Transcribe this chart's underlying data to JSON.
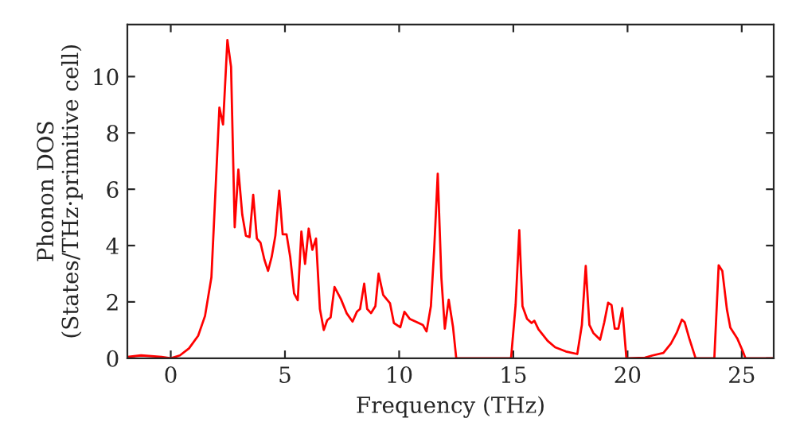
{
  "chart_data": {
    "type": "line",
    "xlabel": "Frequency (THz)",
    "ylabel": "Phonon DOS\n(States/THz·primitive cell)",
    "xlim": [
      -1.9,
      26.4
    ],
    "ylim": [
      0,
      11.85
    ],
    "xticks": [
      0,
      5,
      10,
      15,
      20,
      25
    ],
    "yticks": [
      0,
      2,
      4,
      6,
      8,
      10
    ],
    "grid": false,
    "legend": false,
    "marker": "none",
    "line_style": "solid",
    "series": [
      {
        "color": "#ff0000",
        "x": [
          -1.9,
          -1.3,
          -0.4,
          0,
          0.4,
          0.8,
          1.2,
          1.5,
          1.78,
          2.13,
          2.29,
          2.48,
          2.64,
          2.8,
          2.96,
          3.13,
          3.29,
          3.45,
          3.61,
          3.77,
          3.93,
          4.1,
          4.26,
          4.42,
          4.58,
          4.75,
          4.9,
          5.07,
          5.23,
          5.4,
          5.56,
          5.72,
          5.88,
          6.04,
          6.2,
          6.36,
          6.53,
          6.7,
          6.85,
          7.0,
          7.17,
          7.45,
          7.7,
          7.96,
          8.15,
          8.29,
          8.47,
          8.6,
          8.77,
          8.96,
          9.1,
          9.3,
          9.6,
          9.77,
          10.05,
          10.23,
          10.46,
          10.8,
          11.04,
          11.2,
          11.39,
          11.53,
          11.69,
          11.85,
          12.0,
          12.17,
          12.36,
          12.5,
          14.9,
          15.1,
          15.26,
          15.4,
          15.6,
          15.8,
          15.92,
          16.1,
          16.5,
          16.83,
          17.3,
          17.8,
          18.0,
          18.17,
          18.33,
          18.5,
          18.8,
          18.98,
          19.15,
          19.3,
          19.44,
          19.6,
          19.77,
          19.95,
          20.76,
          21.1,
          21.57,
          21.9,
          22.15,
          22.38,
          22.5,
          22.7,
          22.98,
          23.8,
          23.99,
          24.15,
          24.35,
          24.5,
          24.8,
          25.05,
          25.16,
          26.4
        ],
        "values": [
          0.05,
          0.1,
          0.05,
          0.0,
          0.1,
          0.35,
          0.8,
          1.5,
          2.87,
          8.9,
          8.3,
          11.3,
          10.35,
          4.65,
          6.7,
          5.1,
          4.35,
          4.3,
          5.8,
          4.25,
          4.1,
          3.5,
          3.1,
          3.6,
          4.35,
          5.95,
          4.4,
          4.4,
          3.6,
          2.3,
          2.06,
          4.5,
          3.35,
          4.6,
          3.85,
          4.25,
          1.75,
          1.0,
          1.35,
          1.45,
          2.53,
          2.1,
          1.6,
          1.3,
          1.65,
          1.75,
          2.65,
          1.75,
          1.6,
          1.85,
          3.0,
          2.25,
          1.95,
          1.25,
          1.1,
          1.65,
          1.4,
          1.27,
          1.18,
          0.95,
          1.85,
          3.8,
          6.55,
          2.85,
          1.05,
          2.08,
          1.1,
          0,
          0,
          1.9,
          4.55,
          1.85,
          1.4,
          1.25,
          1.33,
          1.03,
          0.62,
          0.39,
          0.24,
          0.15,
          1.18,
          3.28,
          1.18,
          0.9,
          0.66,
          1.27,
          1.97,
          1.89,
          1.05,
          1.05,
          1.78,
          0,
          0.02,
          0.1,
          0.19,
          0.52,
          0.9,
          1.37,
          1.28,
          0.71,
          0,
          0,
          3.3,
          3.1,
          1.74,
          1.09,
          0.71,
          0.24,
          0,
          0
        ]
      }
    ]
  }
}
